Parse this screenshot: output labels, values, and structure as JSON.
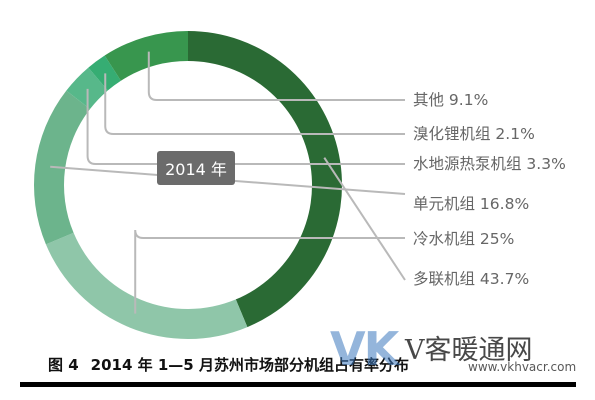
{
  "chart_data": {
    "type": "pie",
    "donut": true,
    "center_label": "2014 年",
    "slices": [
      {
        "label": "多联机组",
        "value": 43.7,
        "color": "#2a6a34"
      },
      {
        "label": "冷水机组",
        "value": 25,
        "color": "#8fc6a9"
      },
      {
        "label": "单元机组",
        "value": 16.8,
        "color": "#6cb48c"
      },
      {
        "label": "水地源热泵机组",
        "value": 3.3,
        "color": "#57b88a"
      },
      {
        "label": "溴化锂机组",
        "value": 2.1,
        "color": "#36ad73"
      },
      {
        "label": "其他",
        "value": 9.1,
        "color": "#38964e"
      }
    ],
    "legend_entries": [
      "其他 9.1%",
      "溴化锂机组 2.1%",
      "水地源热泵机组 3.3%",
      "单元机组 16.8%",
      "冷水机组 25%",
      "多联机组 43.7%"
    ],
    "legend_placement": "right, with leader lines"
  },
  "caption": {
    "figure_no": "图 4",
    "text": "2014 年 1—5 月苏州市场部分机组占有率分布"
  },
  "watermark": {
    "mark": "VK",
    "name": "V客暖通网",
    "url": "www.vkhvacr.com"
  }
}
